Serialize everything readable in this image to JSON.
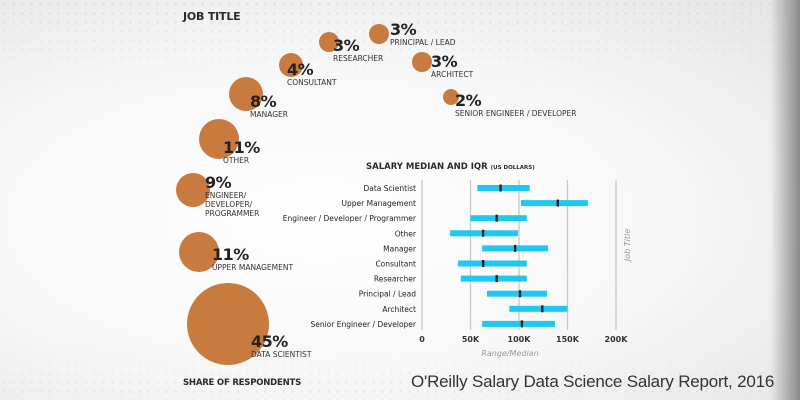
{
  "bubbles": {
    "title": "JOB TITLE",
    "footer": "SHARE OF RESPONDENTS",
    "color": "#c87a3f",
    "items": [
      {
        "pct": "45%",
        "value": 45,
        "label": "DATA SCIENTIST"
      },
      {
        "pct": "11%",
        "value": 11,
        "label": "UPPER MANAGEMENT"
      },
      {
        "pct": "9%",
        "value": 9,
        "label": "ENGINEER/ DEVELOPER/ PROGRAMMER"
      },
      {
        "pct": "11%",
        "value": 11,
        "label": "OTHER"
      },
      {
        "pct": "8%",
        "value": 8,
        "label": "MANAGER"
      },
      {
        "pct": "4%",
        "value": 4,
        "label": "CONSULTANT"
      },
      {
        "pct": "3%",
        "value": 3,
        "label": "RESEARCHER"
      },
      {
        "pct": "3%",
        "value": 3,
        "label": "PRINCIPAL / LEAD"
      },
      {
        "pct": "3%",
        "value": 3,
        "label": "ARCHITECT"
      },
      {
        "pct": "2%",
        "value": 2,
        "label": "SENIOR ENGINEER / DEVELOPER"
      }
    ]
  },
  "chart_data": {
    "type": "bar",
    "title": "SALARY MEDIAN AND IQR",
    "title_unit": "(US DOLLARS)",
    "xlabel": "Range/Median",
    "ylabel": "Job Title",
    "xlim": [
      0,
      200000
    ],
    "xticks": [
      "0",
      "50K",
      "100K",
      "150K",
      "200K"
    ],
    "grid": true,
    "bar_color": "#1ec8ee",
    "median_color": "#222222",
    "categories": [
      "Data Scientist",
      "Upper Management",
      "Engineer / Developer / Programmer",
      "Other",
      "Manager",
      "Consultant",
      "Researcher",
      "Principal / Lead",
      "Architect",
      "Senior Engineer / Developer"
    ],
    "q1": [
      57000,
      102000,
      50000,
      29000,
      62000,
      37000,
      40000,
      67000,
      90000,
      62000
    ],
    "median": [
      81000,
      140000,
      77000,
      63000,
      96000,
      63000,
      77000,
      101000,
      124000,
      103000
    ],
    "q3": [
      111000,
      171000,
      108000,
      99000,
      130000,
      108000,
      108000,
      129000,
      150000,
      137000
    ]
  },
  "caption": "O'Reilly Salary Data Science Salary Report, 2016"
}
